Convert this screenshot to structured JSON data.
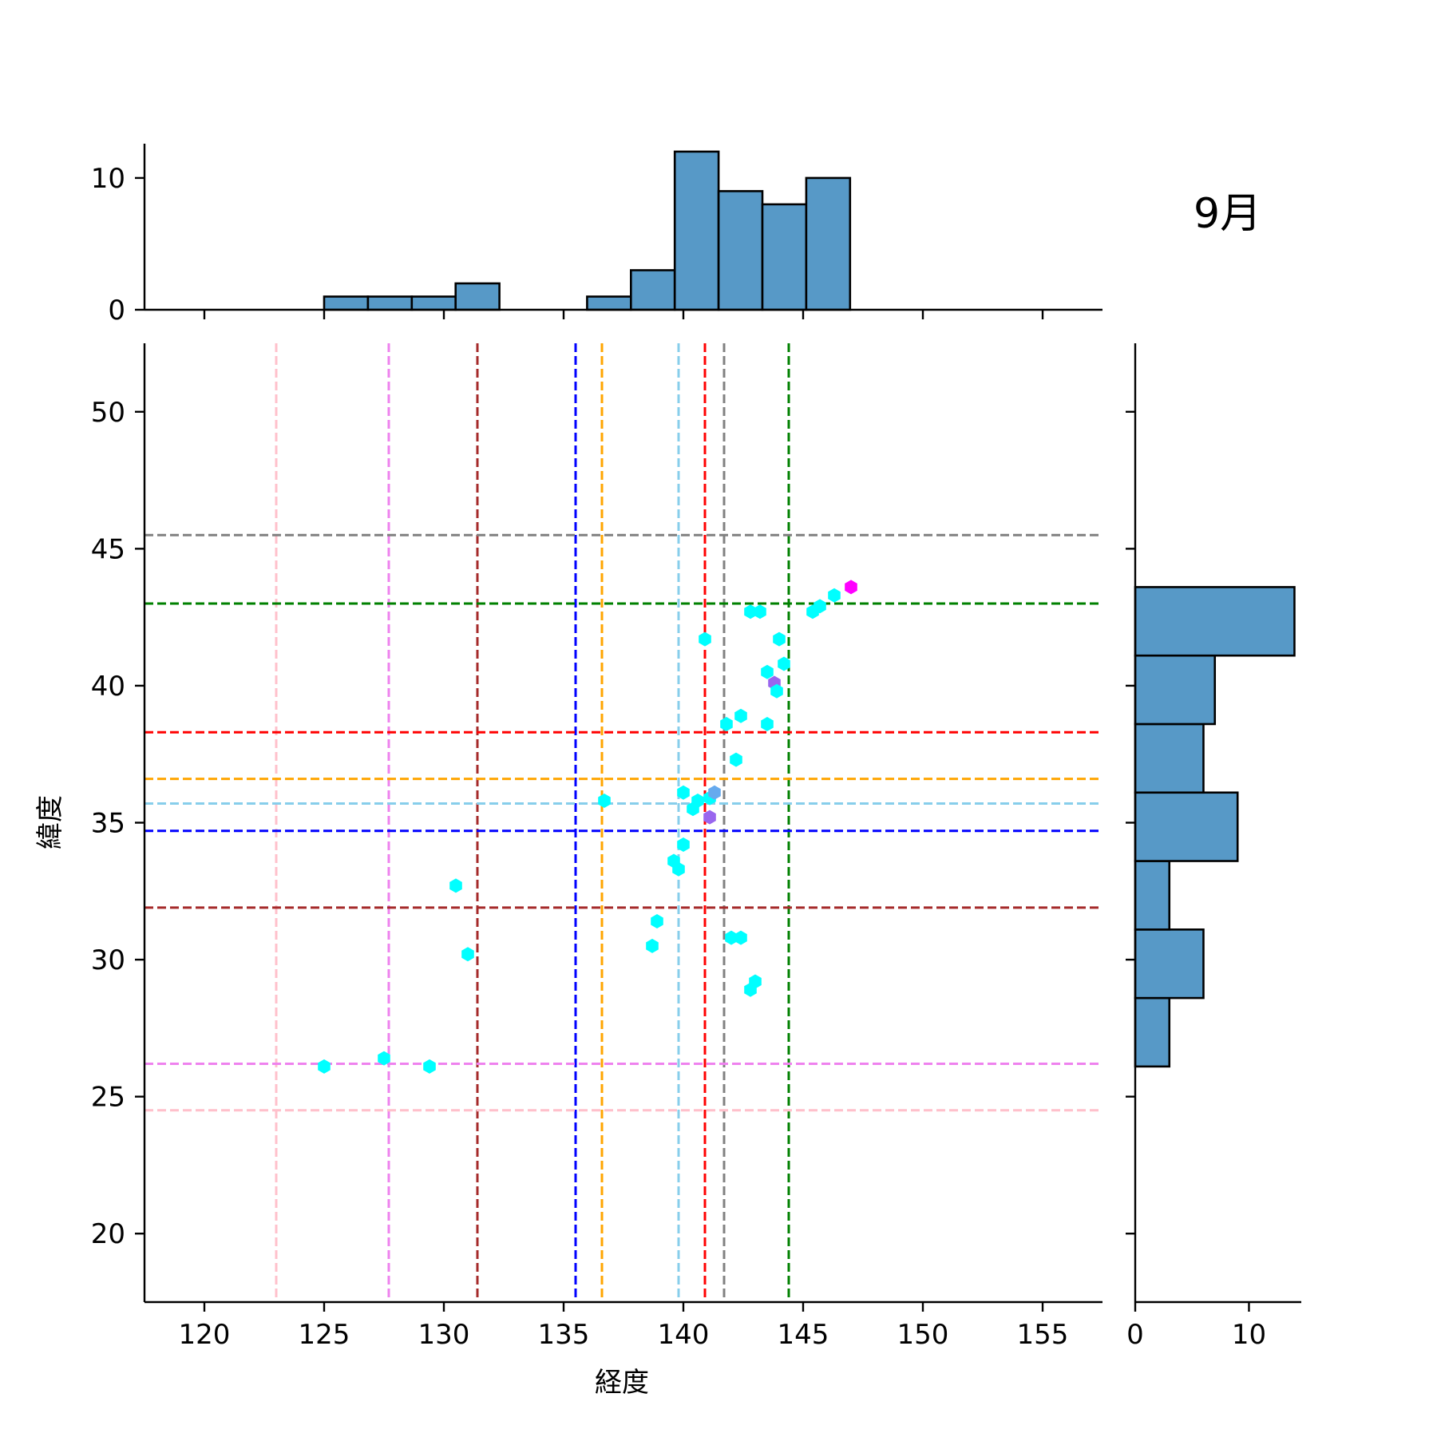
{
  "chart_data": {
    "type": "scatter",
    "annotation": "9月",
    "xlabel": "経度",
    "ylabel": "緯度",
    "xlim": [
      117.5,
      157.5
    ],
    "ylim": [
      17.5,
      52.5
    ],
    "xticks": [
      120,
      125,
      130,
      135,
      140,
      145,
      150,
      155
    ],
    "yticks": [
      20,
      25,
      30,
      35,
      40,
      45,
      50
    ],
    "grid": false,
    "colors": {
      "bar": "#5799c7",
      "bar_edge": "#000000",
      "point": "#00ffff",
      "axis": "#000000"
    },
    "points": [
      {
        "x": 125.0,
        "y": 26.1,
        "color": "#00ffff"
      },
      {
        "x": 127.5,
        "y": 26.4,
        "color": "#00ffff"
      },
      {
        "x": 129.4,
        "y": 26.1,
        "color": "#00ffff"
      },
      {
        "x": 130.5,
        "y": 32.7,
        "color": "#00ffff"
      },
      {
        "x": 131.0,
        "y": 30.2,
        "color": "#00ffff"
      },
      {
        "x": 136.7,
        "y": 35.8,
        "color": "#00ffff"
      },
      {
        "x": 138.7,
        "y": 30.5,
        "color": "#00ffff"
      },
      {
        "x": 138.9,
        "y": 31.4,
        "color": "#00ffff"
      },
      {
        "x": 139.6,
        "y": 33.6,
        "color": "#00ffff"
      },
      {
        "x": 139.8,
        "y": 33.3,
        "color": "#00ffff"
      },
      {
        "x": 140.0,
        "y": 34.2,
        "color": "#00ffff"
      },
      {
        "x": 140.0,
        "y": 36.1,
        "color": "#00ffff"
      },
      {
        "x": 140.4,
        "y": 35.5,
        "color": "#00ffff"
      },
      {
        "x": 140.6,
        "y": 35.8,
        "color": "#00ffff"
      },
      {
        "x": 140.9,
        "y": 41.7,
        "color": "#00ffff"
      },
      {
        "x": 141.1,
        "y": 35.9,
        "color": "#00ffff"
      },
      {
        "x": 141.1,
        "y": 35.2,
        "color": "#9966ee"
      },
      {
        "x": 141.3,
        "y": 36.1,
        "color": "#66aaee"
      },
      {
        "x": 141.8,
        "y": 38.6,
        "color": "#00ffff"
      },
      {
        "x": 142.0,
        "y": 30.8,
        "color": "#00ffff"
      },
      {
        "x": 142.2,
        "y": 37.3,
        "color": "#00ffff"
      },
      {
        "x": 142.4,
        "y": 30.8,
        "color": "#00ffff"
      },
      {
        "x": 142.4,
        "y": 38.9,
        "color": "#00ffff"
      },
      {
        "x": 142.8,
        "y": 28.9,
        "color": "#00ffff"
      },
      {
        "x": 142.8,
        "y": 42.7,
        "color": "#00ffff"
      },
      {
        "x": 143.0,
        "y": 29.2,
        "color": "#00ffff"
      },
      {
        "x": 143.2,
        "y": 42.7,
        "color": "#00ffff"
      },
      {
        "x": 143.5,
        "y": 38.6,
        "color": "#00ffff"
      },
      {
        "x": 143.5,
        "y": 40.5,
        "color": "#00ffff"
      },
      {
        "x": 143.8,
        "y": 40.1,
        "color": "#9966ee"
      },
      {
        "x": 143.9,
        "y": 39.8,
        "color": "#00ffff"
      },
      {
        "x": 144.0,
        "y": 41.7,
        "color": "#00ffff"
      },
      {
        "x": 144.2,
        "y": 40.8,
        "color": "#00ffff"
      },
      {
        "x": 145.4,
        "y": 42.7,
        "color": "#00ffff"
      },
      {
        "x": 145.7,
        "y": 42.9,
        "color": "#00ffff"
      },
      {
        "x": 146.3,
        "y": 43.3,
        "color": "#00ffff"
      },
      {
        "x": 147.0,
        "y": 43.6,
        "color": "#ff00ff"
      }
    ],
    "vlines": [
      {
        "x": 123.0,
        "color": "#ffc0cb"
      },
      {
        "x": 127.7,
        "color": "#ee82ee"
      },
      {
        "x": 131.4,
        "color": "#a52a2a"
      },
      {
        "x": 135.5,
        "color": "#0000ff"
      },
      {
        "x": 136.6,
        "color": "#ffa500"
      },
      {
        "x": 139.8,
        "color": "#87ceeb"
      },
      {
        "x": 140.9,
        "color": "#ff0000"
      },
      {
        "x": 141.7,
        "color": "#808080"
      },
      {
        "x": 144.4,
        "color": "#008000"
      }
    ],
    "hlines": [
      {
        "y": 45.5,
        "color": "#808080"
      },
      {
        "y": 43.0,
        "color": "#008000"
      },
      {
        "y": 38.3,
        "color": "#ff0000"
      },
      {
        "y": 36.6,
        "color": "#ffa500"
      },
      {
        "y": 35.7,
        "color": "#87ceeb"
      },
      {
        "y": 34.7,
        "color": "#0000ff"
      },
      {
        "y": 31.9,
        "color": "#a52a2a"
      },
      {
        "y": 26.2,
        "color": "#ee82ee"
      },
      {
        "y": 24.5,
        "color": "#ffc0cb"
      }
    ],
    "top_histogram": {
      "type": "bar",
      "yticks": [
        0,
        10
      ],
      "ylim": [
        0,
        12.6
      ],
      "bins": [
        {
          "start": 125.0,
          "end": 126.83,
          "count": 1
        },
        {
          "start": 126.83,
          "end": 128.66,
          "count": 1
        },
        {
          "start": 128.66,
          "end": 130.49,
          "count": 1
        },
        {
          "start": 130.49,
          "end": 132.32,
          "count": 2
        },
        {
          "start": 132.32,
          "end": 134.15,
          "count": 0
        },
        {
          "start": 134.15,
          "end": 135.98,
          "count": 0
        },
        {
          "start": 135.98,
          "end": 137.81,
          "count": 1
        },
        {
          "start": 137.81,
          "end": 139.64,
          "count": 3
        },
        {
          "start": 139.64,
          "end": 141.47,
          "count": 12
        },
        {
          "start": 141.47,
          "end": 143.3,
          "count": 9
        },
        {
          "start": 143.3,
          "end": 145.13,
          "count": 8
        },
        {
          "start": 145.13,
          "end": 146.96,
          "count": 10
        }
      ]
    },
    "right_histogram": {
      "type": "bar",
      "xticks": [
        0,
        10
      ],
      "xlim": [
        0,
        14.6
      ],
      "bins": [
        {
          "start": 26.1,
          "end": 28.6,
          "count": 3
        },
        {
          "start": 28.6,
          "end": 31.1,
          "count": 6
        },
        {
          "start": 31.1,
          "end": 33.6,
          "count": 3
        },
        {
          "start": 33.6,
          "end": 36.1,
          "count": 9
        },
        {
          "start": 36.1,
          "end": 38.6,
          "count": 6
        },
        {
          "start": 38.6,
          "end": 41.1,
          "count": 7
        },
        {
          "start": 41.1,
          "end": 43.6,
          "count": 14
        }
      ]
    }
  }
}
